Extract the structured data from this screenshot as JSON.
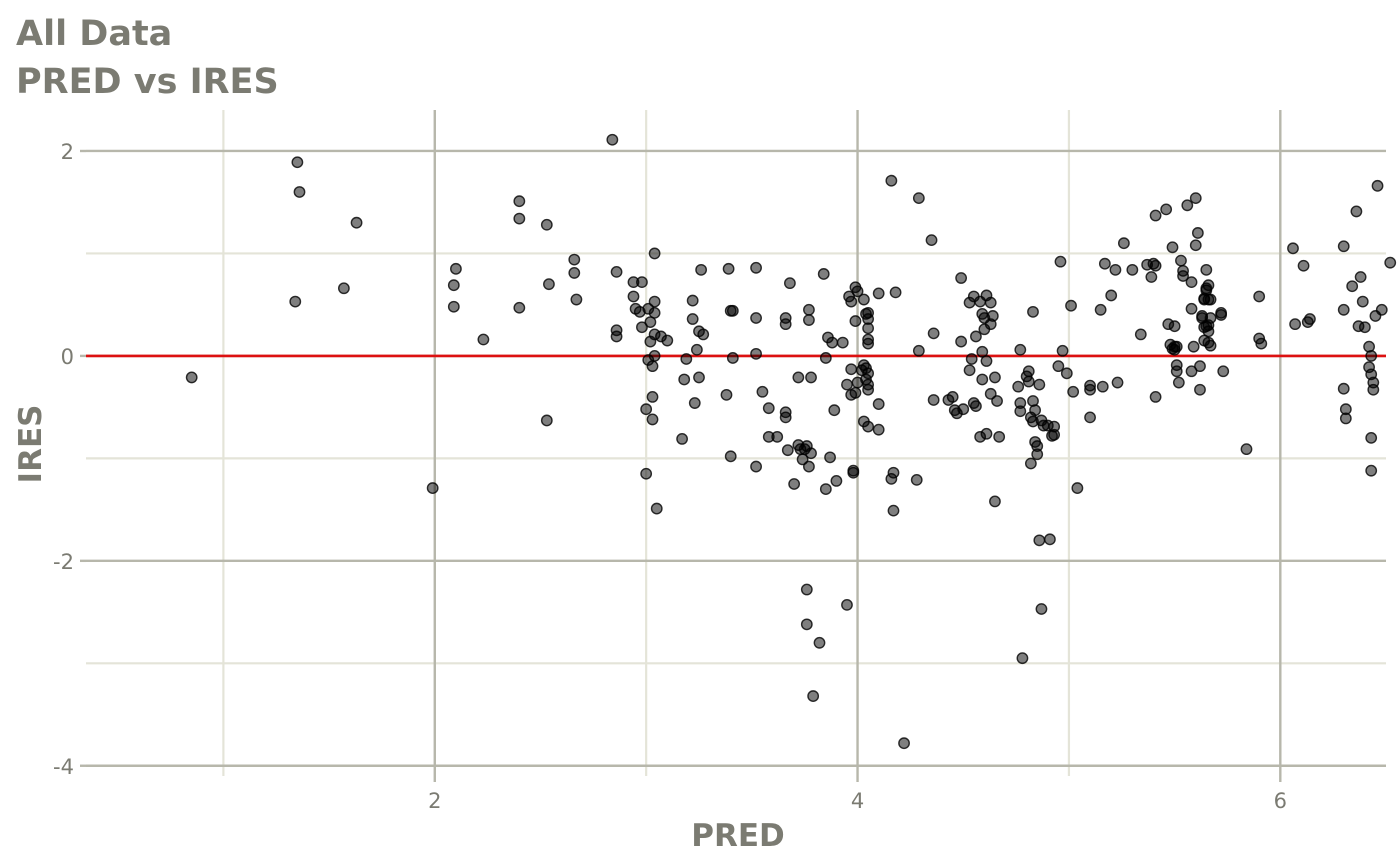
{
  "titles": {
    "line1": "All Data",
    "line2": "PRED vs IRES"
  },
  "chart_data": {
    "type": "scatter",
    "xlabel": "PRED",
    "ylabel": "IRES",
    "xlim": [
      0.35,
      6.5
    ],
    "ylim": [
      -4.1,
      2.4
    ],
    "x_ticks": [
      2,
      4,
      6
    ],
    "x_tick_labels": [
      "2",
      "4",
      "6"
    ],
    "x_minor_ticks": [
      1,
      3,
      5
    ],
    "y_ticks": [
      2,
      0,
      -2,
      -4
    ],
    "y_tick_labels": [
      "2",
      "0",
      "-2",
      "-4"
    ],
    "y_minor_ticks": [
      1,
      -1,
      -3
    ],
    "grid": true,
    "reference_line": {
      "y": 0,
      "color": "#dd1111"
    },
    "colors": {
      "point": "#000000",
      "major_grid": "#b7b7ab",
      "minor_grid": "#e4e4d8",
      "text": "#7b7b72"
    },
    "points": [
      [
        0.85,
        -0.21
      ],
      [
        1.35,
        1.89
      ],
      [
        1.36,
        1.6
      ],
      [
        1.34,
        0.53
      ],
      [
        1.57,
        0.66
      ],
      [
        1.63,
        1.3
      ],
      [
        1.99,
        -1.29
      ],
      [
        2.09,
        0.69
      ],
      [
        2.1,
        0.85
      ],
      [
        2.09,
        0.48
      ],
      [
        2.23,
        0.16
      ],
      [
        2.4,
        1.51
      ],
      [
        2.4,
        1.34
      ],
      [
        2.4,
        0.47
      ],
      [
        2.53,
        1.28
      ],
      [
        2.54,
        0.7
      ],
      [
        2.53,
        -0.63
      ],
      [
        2.66,
        0.94
      ],
      [
        2.66,
        0.81
      ],
      [
        2.67,
        0.55
      ],
      [
        2.84,
        2.11
      ],
      [
        2.86,
        0.82
      ],
      [
        2.86,
        0.25
      ],
      [
        2.86,
        0.19
      ],
      [
        2.94,
        0.72
      ],
      [
        2.94,
        0.58
      ],
      [
        2.95,
        0.46
      ],
      [
        2.97,
        0.43
      ],
      [
        2.98,
        0.28
      ],
      [
        2.98,
        0.72
      ],
      [
        3.0,
        -0.52
      ],
      [
        3.0,
        -1.15
      ],
      [
        3.01,
        0.46
      ],
      [
        3.01,
        -0.04
      ],
      [
        3.02,
        0.33
      ],
      [
        3.02,
        0.14
      ],
      [
        3.03,
        -0.1
      ],
      [
        3.03,
        -0.4
      ],
      [
        3.03,
        -0.62
      ],
      [
        3.04,
        1.0
      ],
      [
        3.04,
        0.53
      ],
      [
        3.04,
        0.42
      ],
      [
        3.04,
        0.21
      ],
      [
        3.04,
        0.0
      ],
      [
        3.05,
        -1.49
      ],
      [
        3.07,
        0.19
      ],
      [
        3.1,
        0.15
      ],
      [
        3.17,
        -0.81
      ],
      [
        3.18,
        -0.23
      ],
      [
        3.19,
        -0.03
      ],
      [
        3.22,
        0.54
      ],
      [
        3.22,
        0.36
      ],
      [
        3.23,
        -0.46
      ],
      [
        3.24,
        0.06
      ],
      [
        3.25,
        -0.21
      ],
      [
        3.25,
        0.24
      ],
      [
        3.26,
        0.84
      ],
      [
        3.27,
        0.21
      ],
      [
        3.38,
        -0.38
      ],
      [
        3.39,
        0.85
      ],
      [
        3.4,
        -0.98
      ],
      [
        3.4,
        0.44
      ],
      [
        3.41,
        0.44
      ],
      [
        3.41,
        -0.02
      ],
      [
        3.52,
        0.86
      ],
      [
        3.52,
        0.37
      ],
      [
        3.52,
        0.02
      ],
      [
        3.52,
        -1.08
      ],
      [
        3.55,
        -0.35
      ],
      [
        3.58,
        -0.51
      ],
      [
        3.58,
        -0.79
      ],
      [
        3.62,
        -0.79
      ],
      [
        3.66,
        0.37
      ],
      [
        3.66,
        0.31
      ],
      [
        3.66,
        -0.55
      ],
      [
        3.66,
        -0.6
      ],
      [
        3.67,
        -0.92
      ],
      [
        3.68,
        0.71
      ],
      [
        3.7,
        -1.25
      ],
      [
        3.72,
        -0.87
      ],
      [
        3.72,
        -0.21
      ],
      [
        3.73,
        -0.91
      ],
      [
        3.74,
        -1.01
      ],
      [
        3.75,
        -0.91
      ],
      [
        3.76,
        -0.88
      ],
      [
        3.76,
        -2.28
      ],
      [
        3.76,
        -2.62
      ],
      [
        3.77,
        0.45
      ],
      [
        3.77,
        0.35
      ],
      [
        3.77,
        -1.08
      ],
      [
        3.78,
        -0.95
      ],
      [
        3.78,
        -0.21
      ],
      [
        3.79,
        -3.32
      ],
      [
        3.82,
        -2.8
      ],
      [
        3.84,
        0.8
      ],
      [
        3.85,
        -0.02
      ],
      [
        3.85,
        -1.3
      ],
      [
        3.86,
        0.18
      ],
      [
        3.87,
        -0.99
      ],
      [
        3.88,
        0.13
      ],
      [
        3.89,
        -0.53
      ],
      [
        3.9,
        -1.22
      ],
      [
        3.93,
        0.13
      ],
      [
        3.95,
        -0.28
      ],
      [
        3.95,
        -2.43
      ],
      [
        3.96,
        0.58
      ],
      [
        3.97,
        0.53
      ],
      [
        3.97,
        -0.38
      ],
      [
        3.97,
        -0.13
      ],
      [
        3.98,
        -1.12
      ],
      [
        3.98,
        -1.14
      ],
      [
        3.99,
        -0.36
      ],
      [
        3.99,
        0.67
      ],
      [
        3.99,
        0.34
      ],
      [
        4.0,
        0.63
      ],
      [
        4.0,
        -0.26
      ],
      [
        4.02,
        -0.14
      ],
      [
        4.03,
        -0.09
      ],
      [
        4.03,
        0.55
      ],
      [
        4.03,
        -0.64
      ],
      [
        4.04,
        -0.23
      ],
      [
        4.04,
        -0.12
      ],
      [
        4.04,
        0.41
      ],
      [
        4.05,
        0.42
      ],
      [
        4.05,
        0.36
      ],
      [
        4.05,
        0.27
      ],
      [
        4.05,
        0.16
      ],
      [
        4.05,
        0.12
      ],
      [
        4.05,
        -0.17
      ],
      [
        4.05,
        -0.28
      ],
      [
        4.05,
        -0.33
      ],
      [
        4.05,
        -0.69
      ],
      [
        4.1,
        -0.72
      ],
      [
        4.1,
        -0.47
      ],
      [
        4.1,
        0.61
      ],
      [
        4.16,
        -1.2
      ],
      [
        4.16,
        1.71
      ],
      [
        4.17,
        -1.51
      ],
      [
        4.17,
        -1.14
      ],
      [
        4.18,
        0.62
      ],
      [
        4.22,
        -3.78
      ],
      [
        4.28,
        -1.21
      ],
      [
        4.29,
        1.54
      ],
      [
        4.29,
        0.05
      ],
      [
        4.35,
        1.13
      ],
      [
        4.36,
        0.22
      ],
      [
        4.36,
        -0.43
      ],
      [
        4.43,
        -0.43
      ],
      [
        4.45,
        -0.4
      ],
      [
        4.46,
        -0.53
      ],
      [
        4.47,
        -0.56
      ],
      [
        4.49,
        0.76
      ],
      [
        4.49,
        0.14
      ],
      [
        4.5,
        -0.52
      ],
      [
        4.53,
        0.52
      ],
      [
        4.53,
        -0.14
      ],
      [
        4.54,
        -0.03
      ],
      [
        4.55,
        -0.46
      ],
      [
        4.55,
        0.58
      ],
      [
        4.56,
        0.19
      ],
      [
        4.56,
        -0.49
      ],
      [
        4.58,
        0.53
      ],
      [
        4.58,
        -0.79
      ],
      [
        4.59,
        -0.23
      ],
      [
        4.59,
        0.41
      ],
      [
        4.59,
        0.04
      ],
      [
        4.6,
        0.26
      ],
      [
        4.6,
        0.37
      ],
      [
        4.61,
        0.59
      ],
      [
        4.61,
        -0.76
      ],
      [
        4.61,
        -0.05
      ],
      [
        4.63,
        0.52
      ],
      [
        4.63,
        -0.37
      ],
      [
        4.63,
        0.31
      ],
      [
        4.64,
        0.39
      ],
      [
        4.65,
        -1.42
      ],
      [
        4.65,
        -0.21
      ],
      [
        4.66,
        -0.44
      ],
      [
        4.67,
        -0.79
      ],
      [
        4.76,
        -0.3
      ],
      [
        4.77,
        0.06
      ],
      [
        4.77,
        -0.46
      ],
      [
        4.77,
        -0.54
      ],
      [
        4.78,
        -2.95
      ],
      [
        4.8,
        -0.2
      ],
      [
        4.81,
        -0.25
      ],
      [
        4.81,
        -0.15
      ],
      [
        4.82,
        -0.6
      ],
      [
        4.82,
        -1.05
      ],
      [
        4.83,
        -0.64
      ],
      [
        4.83,
        0.43
      ],
      [
        4.83,
        -0.44
      ],
      [
        4.84,
        -0.84
      ],
      [
        4.84,
        -0.53
      ],
      [
        4.85,
        -0.88
      ],
      [
        4.85,
        -0.96
      ],
      [
        4.86,
        -0.28
      ],
      [
        4.86,
        -1.8
      ],
      [
        4.87,
        -0.63
      ],
      [
        4.87,
        -2.47
      ],
      [
        4.88,
        -0.68
      ],
      [
        4.9,
        -0.68
      ],
      [
        4.91,
        -1.79
      ],
      [
        4.92,
        -0.78
      ],
      [
        4.93,
        -0.77
      ],
      [
        4.93,
        -0.69
      ],
      [
        4.95,
        -0.1
      ],
      [
        4.96,
        0.92
      ],
      [
        4.97,
        0.05
      ],
      [
        4.99,
        -0.17
      ],
      [
        5.01,
        0.49
      ],
      [
        5.02,
        -0.35
      ],
      [
        5.04,
        -1.29
      ],
      [
        5.1,
        -0.6
      ],
      [
        5.1,
        -0.29
      ],
      [
        5.1,
        -0.33
      ],
      [
        5.15,
        0.45
      ],
      [
        5.16,
        -0.3
      ],
      [
        5.17,
        0.9
      ],
      [
        5.2,
        0.59
      ],
      [
        5.22,
        0.84
      ],
      [
        5.23,
        -0.26
      ],
      [
        5.26,
        1.1
      ],
      [
        5.3,
        0.84
      ],
      [
        5.34,
        0.21
      ],
      [
        5.37,
        0.89
      ],
      [
        5.39,
        0.77
      ],
      [
        5.4,
        0.9
      ],
      [
        5.41,
        1.37
      ],
      [
        5.41,
        0.88
      ],
      [
        5.41,
        -0.4
      ],
      [
        5.46,
        1.43
      ],
      [
        5.47,
        0.31
      ],
      [
        5.48,
        0.11
      ],
      [
        5.49,
        0.07
      ],
      [
        5.49,
        1.06
      ],
      [
        5.5,
        0.29
      ],
      [
        5.5,
        0.09
      ],
      [
        5.5,
        0.06
      ],
      [
        5.51,
        0.09
      ],
      [
        5.51,
        -0.09
      ],
      [
        5.51,
        -0.15
      ],
      [
        5.52,
        -0.26
      ],
      [
        5.53,
        0.93
      ],
      [
        5.54,
        0.78
      ],
      [
        5.54,
        0.83
      ],
      [
        5.56,
        1.47
      ],
      [
        5.58,
        0.72
      ],
      [
        5.58,
        -0.15
      ],
      [
        5.58,
        0.46
      ],
      [
        5.59,
        0.09
      ],
      [
        5.6,
        1.54
      ],
      [
        5.6,
        1.08
      ],
      [
        5.61,
        1.2
      ],
      [
        5.62,
        -0.33
      ],
      [
        5.62,
        -0.1
      ],
      [
        5.63,
        0.39
      ],
      [
        5.63,
        0.37
      ],
      [
        5.64,
        0.56
      ],
      [
        5.64,
        0.55
      ],
      [
        5.64,
        0.28
      ],
      [
        5.64,
        0.15
      ],
      [
        5.65,
        0.84
      ],
      [
        5.65,
        0.66
      ],
      [
        5.65,
        0.64
      ],
      [
        5.65,
        0.29
      ],
      [
        5.66,
        0.55
      ],
      [
        5.66,
        0.69
      ],
      [
        5.66,
        0.3
      ],
      [
        5.66,
        0.24
      ],
      [
        5.66,
        0.13
      ],
      [
        5.67,
        0.55
      ],
      [
        5.67,
        0.37
      ],
      [
        5.67,
        0.1
      ],
      [
        5.72,
        0.42
      ],
      [
        5.72,
        0.4
      ],
      [
        5.73,
        -0.15
      ],
      [
        5.84,
        -0.91
      ],
      [
        5.9,
        0.58
      ],
      [
        5.9,
        0.17
      ],
      [
        5.91,
        0.12
      ],
      [
        6.06,
        1.05
      ],
      [
        6.07,
        0.31
      ],
      [
        6.11,
        0.88
      ],
      [
        6.13,
        0.33
      ],
      [
        6.14,
        0.36
      ],
      [
        6.3,
        1.07
      ],
      [
        6.3,
        0.45
      ],
      [
        6.3,
        -0.32
      ],
      [
        6.31,
        -0.52
      ],
      [
        6.31,
        -0.61
      ],
      [
        6.34,
        0.68
      ],
      [
        6.36,
        1.41
      ],
      [
        6.37,
        0.29
      ],
      [
        6.38,
        0.77
      ],
      [
        6.39,
        0.53
      ],
      [
        6.4,
        0.28
      ],
      [
        6.42,
        0.09
      ],
      [
        6.42,
        -0.11
      ],
      [
        6.43,
        0.0
      ],
      [
        6.43,
        -0.18
      ],
      [
        6.43,
        -0.8
      ],
      [
        6.43,
        -1.12
      ],
      [
        6.44,
        -0.26
      ],
      [
        6.44,
        -0.33
      ],
      [
        6.45,
        0.39
      ],
      [
        6.46,
        1.66
      ],
      [
        6.48,
        0.45
      ],
      [
        6.52,
        0.91
      ]
    ]
  }
}
